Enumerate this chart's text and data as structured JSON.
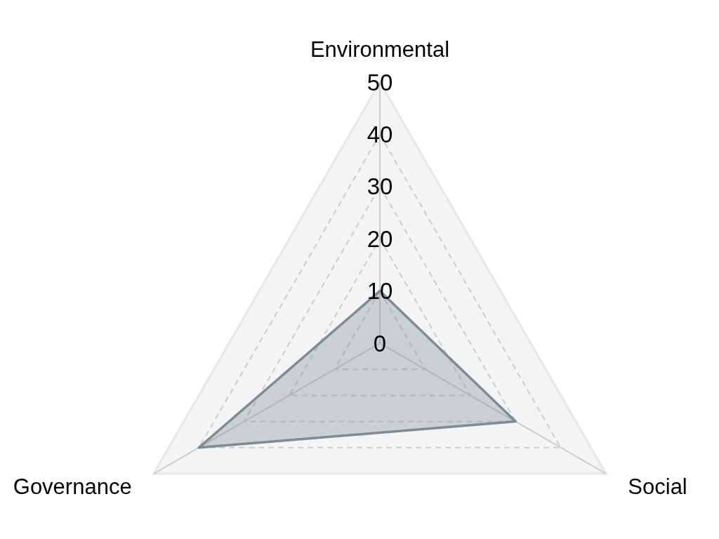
{
  "chart_data": {
    "type": "radar",
    "categories": [
      "Environmental",
      "Social",
      "Governance"
    ],
    "series": [
      {
        "color": "#7f8c8d",
        "values": [
          10,
          30,
          40
        ]
      }
    ],
    "ylim": [
      0,
      50
    ],
    "yticks": [
      0,
      10,
      20,
      30,
      40,
      50
    ],
    "grid": true
  }
}
